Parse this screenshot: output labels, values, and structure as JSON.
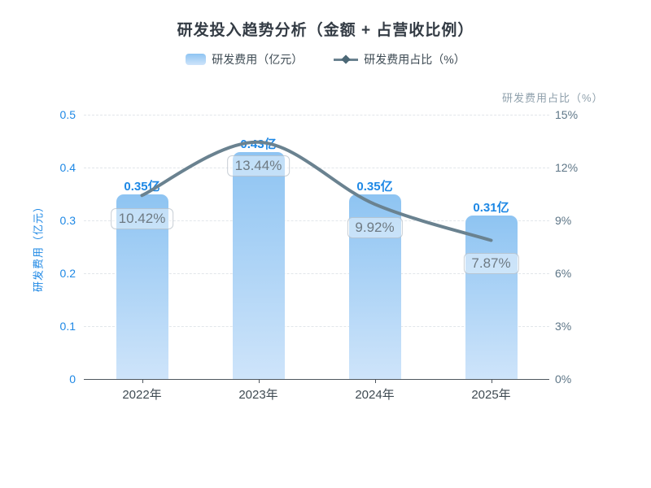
{
  "colors": {
    "title": "#333B44",
    "accent_blue": "#1E88E5",
    "bar_top": "#8EC4F2",
    "bar_bottom": "#CEE4FA",
    "line": "#6A8290",
    "diamond": "#4C6876",
    "right_axis": "#5E7687",
    "right_axis_title": "#8FA0AC",
    "x_label": "#3E4A52",
    "axis": "#4E565E",
    "grid": "#E2E6EA",
    "badge_text": "#6E7A83",
    "background": "#FFFFFF"
  },
  "chart_data": {
    "type": "bar+line",
    "title": "研发投入趋势分析（金额 + 占营收比例）",
    "legend_position": "top",
    "grid": "horizontal dashed",
    "categories": [
      "2022年",
      "2023年",
      "2024年",
      "2025年"
    ],
    "series": [
      {
        "name": "研发费用（亿元）",
        "type": "bar",
        "axis": "left",
        "values": [
          0.35,
          0.43,
          0.35,
          0.31
        ],
        "labels": [
          "0.35亿",
          "0.43亿",
          "0.35亿",
          "0.31亿"
        ]
      },
      {
        "name": "研发费用占比（%）",
        "type": "line",
        "axis": "right",
        "smooth": true,
        "values": [
          10.42,
          13.44,
          9.92,
          7.87
        ],
        "labels": [
          "10.42%",
          "13.44%",
          "9.92%",
          "7.87%"
        ]
      }
    ],
    "left_axis": {
      "label": "研发费用（亿元）",
      "range": [
        0,
        0.5
      ],
      "ticks": [
        "0",
        "0.1",
        "0.2",
        "0.3",
        "0.4",
        "0.5"
      ]
    },
    "right_axis": {
      "label": "研发费用占比（%）",
      "range": [
        0,
        15
      ],
      "ticks": [
        "0%",
        "3%",
        "6%",
        "9%",
        "12%",
        "15%"
      ]
    }
  }
}
